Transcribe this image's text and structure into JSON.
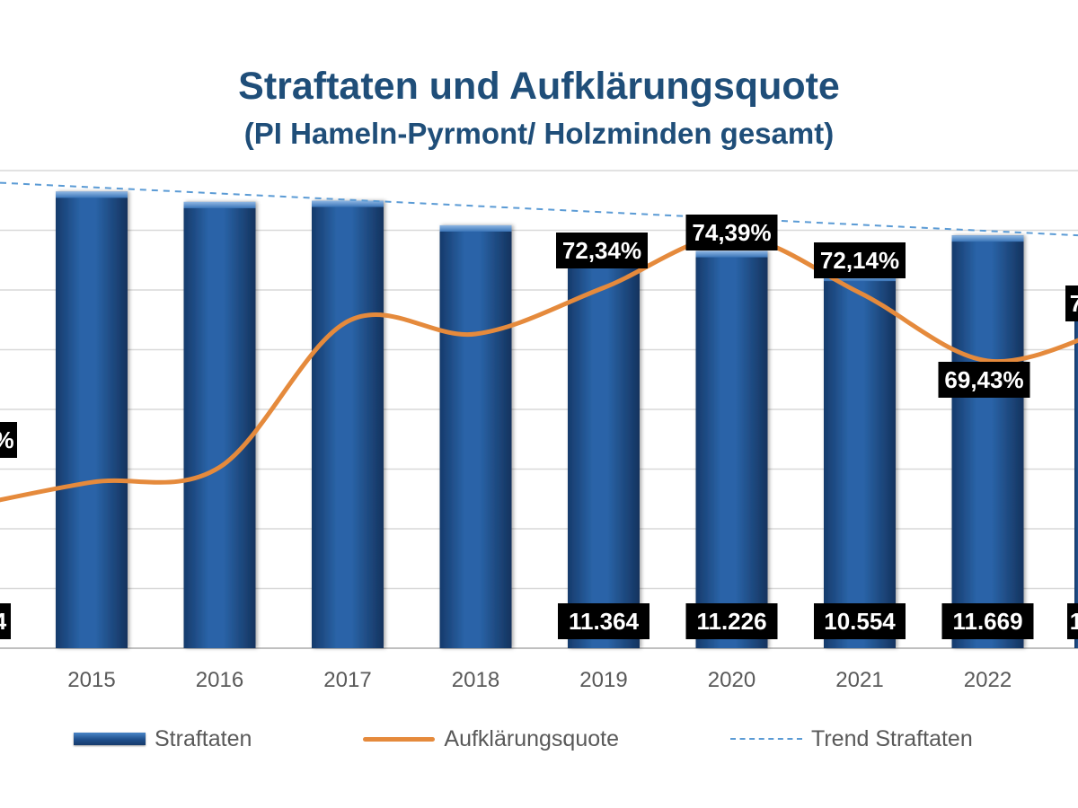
{
  "chart_data": {
    "type": "bar",
    "title": "Straftaten und Aufklärungsquote",
    "subtitle": "(PI Hameln-Pyrmont/ Holzminden gesamt)",
    "categories": [
      "2015",
      "2016",
      "2017",
      "2018",
      "2019",
      "2020",
      "2021",
      "2022"
    ],
    "series": [
      {
        "name": "Straftaten",
        "type": "bar",
        "values": [
          12907,
          12614,
          12649,
          11953,
          11364,
          11226,
          10554,
          11669
        ],
        "data_labels": [
          null,
          null,
          null,
          null,
          "11.364",
          "11.226",
          "10.554",
          "11.669"
        ]
      },
      {
        "name": "Aufklärungsquote",
        "type": "line",
        "values": [
          64.6,
          65.2,
          71.0,
          70.5,
          72.34,
          74.39,
          72.14,
          69.43
        ],
        "data_labels": [
          null,
          null,
          null,
          null,
          "72,34%",
          "74,39%",
          "72,14%",
          "69,43%"
        ]
      },
      {
        "name": "Trend Straftaten",
        "type": "trendline",
        "values": [
          12800,
          12580,
          12400,
          12250,
          12100,
          11980,
          11850,
          11720
        ]
      }
    ],
    "partial_labels": {
      "left_rate": "%",
      "left_count": "4",
      "right_rate": "7",
      "right_count": "1"
    },
    "bar_range": [
      0,
      13500
    ],
    "rate_range": [
      58,
      77
    ],
    "grid": true,
    "legend_position": "bottom"
  },
  "legend": {
    "bars": "Straftaten",
    "line": "Aufklärungsquote",
    "trend": "Trend Straftaten"
  },
  "colors": {
    "bar": "#1F4F8C",
    "line": "#E58A3C",
    "trend": "#5B9BD5",
    "title": "#1F4E79",
    "label_bg": "#000000",
    "label_fg": "#ffffff"
  }
}
